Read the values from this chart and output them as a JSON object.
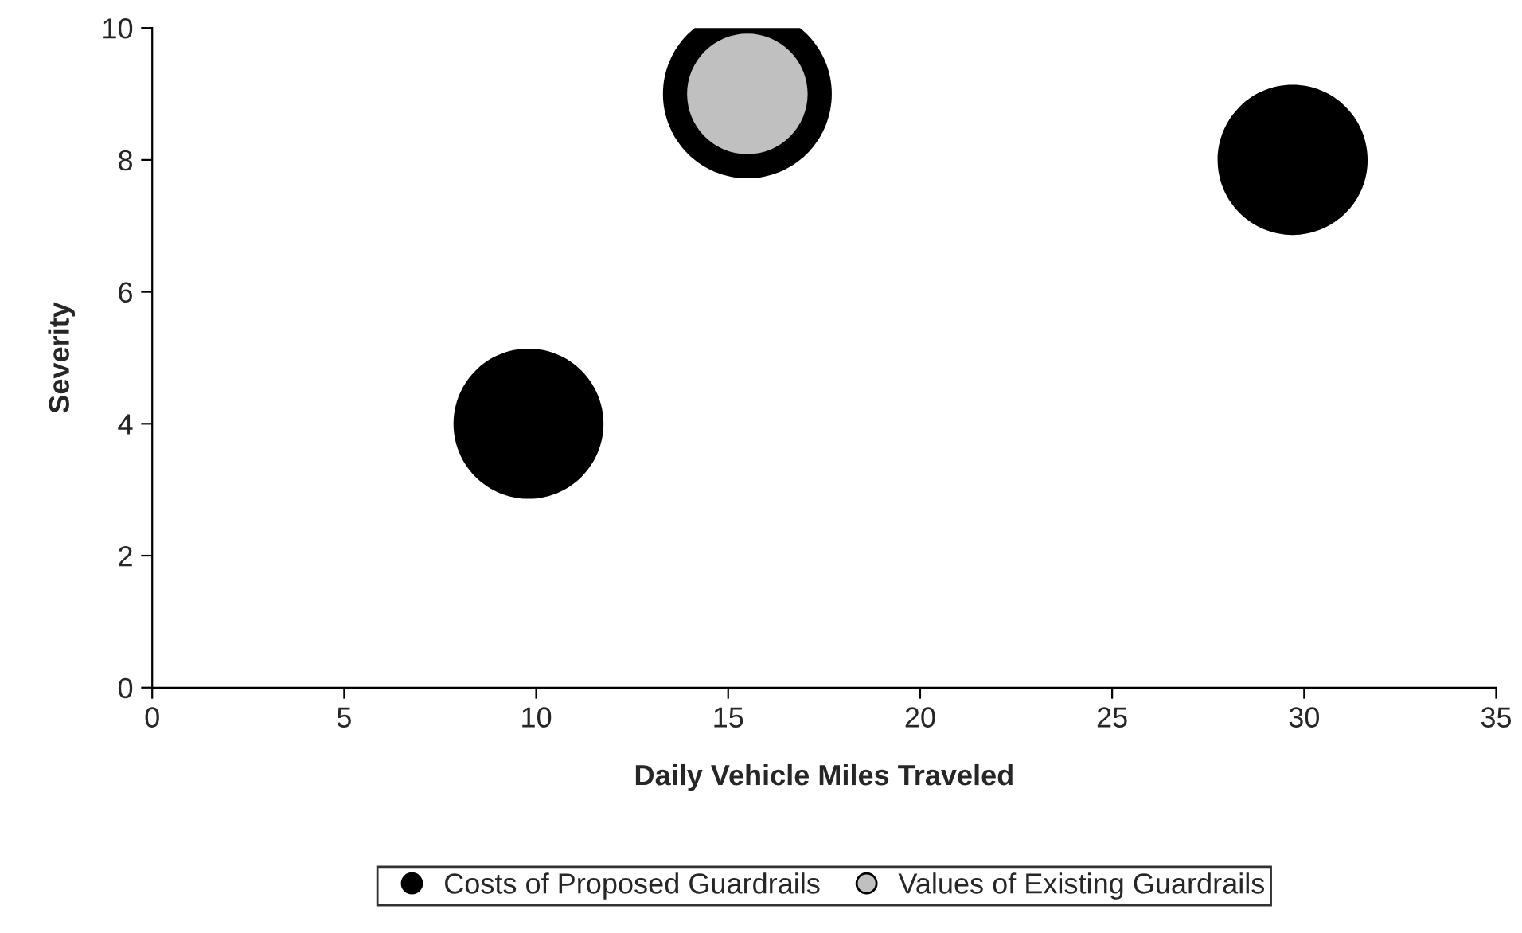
{
  "chart_data": {
    "type": "bubble",
    "xlabel": "Daily Vehicle Miles Traveled",
    "ylabel": "Severity",
    "series": [
      {
        "name": "Costs of Proposed Guardrails",
        "color": "#000000",
        "x": [
          9.8,
          15.5,
          29.7
        ],
        "values": [
          4,
          9,
          8
        ],
        "sizes": [
          0.79,
          1,
          0.79
        ]
      },
      {
        "name": "Values of Existing Guardrails",
        "color": "#c0c0c0",
        "x": [
          15.5
        ],
        "values": [
          9
        ],
        "sizes": [
          0.51
        ]
      }
    ],
    "xlim": [
      0,
      35
    ],
    "xticks": [
      0,
      5,
      10,
      15,
      20,
      25,
      30,
      35
    ],
    "ylim": [
      0,
      10
    ],
    "yticks": [
      0,
      2,
      4,
      6,
      8,
      10
    ],
    "grid": false,
    "legend": "bottom"
  }
}
